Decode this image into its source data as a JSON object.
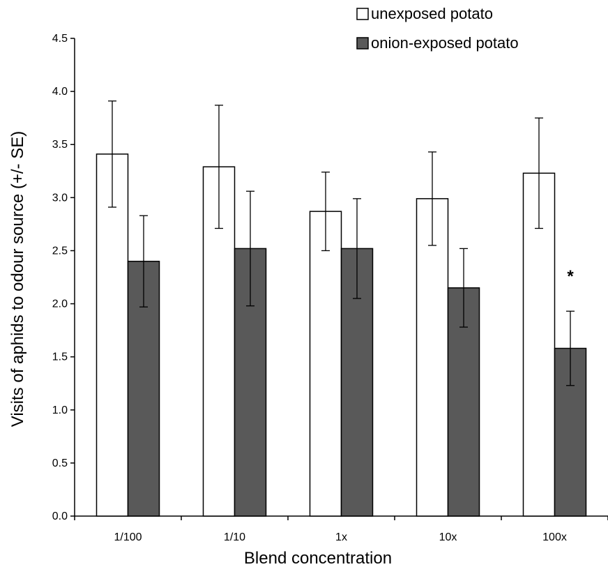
{
  "chart_data": {
    "type": "bar",
    "categories": [
      "1/100",
      "1/10",
      "1x",
      "10x",
      "100x"
    ],
    "series": [
      {
        "name": "unexposed potato",
        "values": [
          3.41,
          3.29,
          2.87,
          2.99,
          3.23
        ],
        "error": [
          0.5,
          0.58,
          0.37,
          0.44,
          0.52
        ],
        "color": "#ffffff"
      },
      {
        "name": "onion-exposed potato",
        "values": [
          2.4,
          2.52,
          2.52,
          2.15,
          1.58
        ],
        "error": [
          0.43,
          0.54,
          0.47,
          0.37,
          0.35
        ],
        "color": "#595959"
      }
    ],
    "xlabel": "Blend concentration",
    "ylabel": "Visits of aphids to odour source (+/- SE)",
    "ylim": [
      0,
      4.5
    ],
    "yticks": [
      "0.0",
      "0.5",
      "1.0",
      "1.5",
      "2.0",
      "2.5",
      "3.0",
      "3.5",
      "4.0",
      "4.5"
    ],
    "grid": false,
    "legend": "top-right",
    "annotations": [
      {
        "text": "*",
        "category": "100x",
        "series": "onion-exposed potato"
      }
    ]
  }
}
